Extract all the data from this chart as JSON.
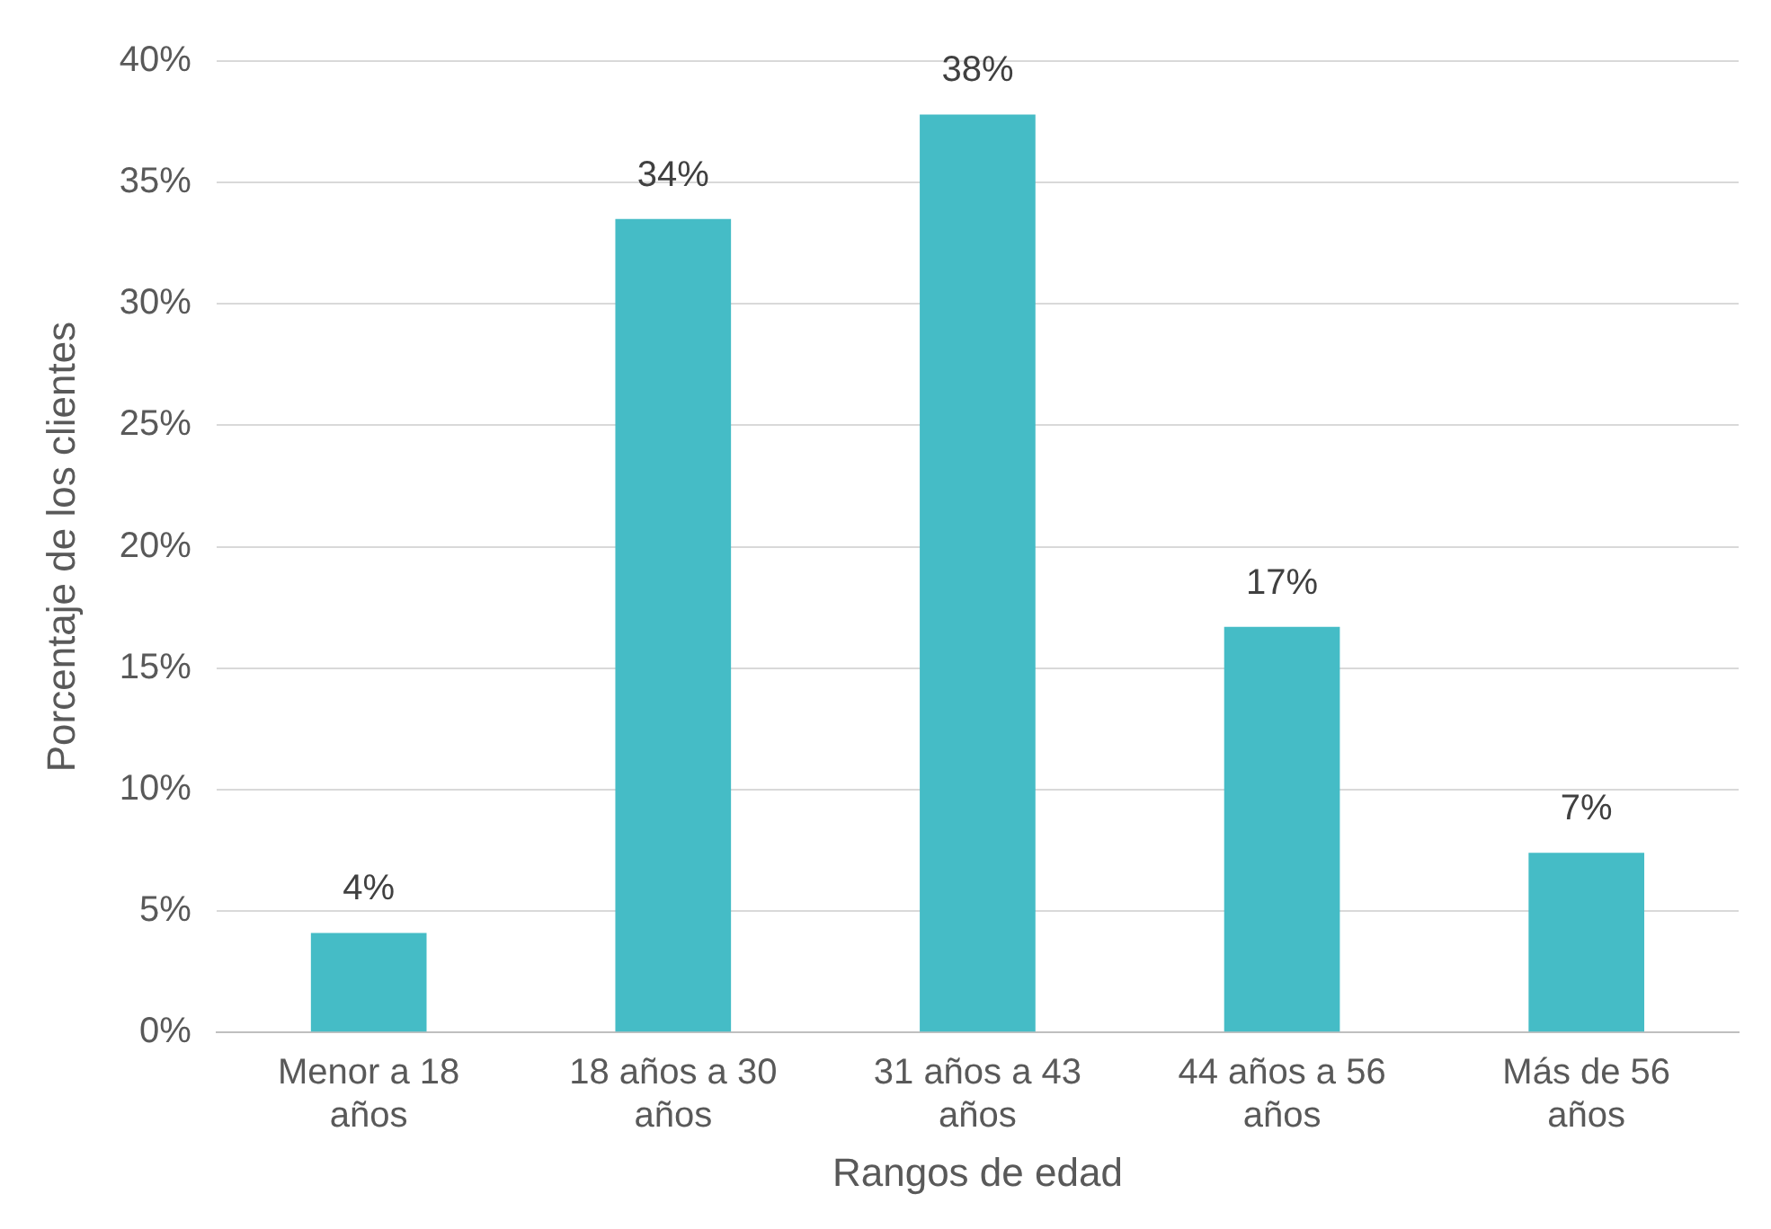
{
  "chart_data": {
    "type": "bar",
    "xlabel": "Rangos de edad",
    "ylabel": "Porcentaje de los clientes",
    "categories": [
      "Menor a 18 años",
      "18 años a 30 años",
      "31 años a 43 años",
      "44 años a 56 años",
      "Más de 56 años"
    ],
    "values": [
      4.1,
      33.5,
      37.8,
      16.7,
      7.4
    ],
    "value_labels": [
      "4%",
      "34%",
      "38%",
      "17%",
      "7%"
    ],
    "color": "#45bcc6",
    "ylim": [
      0,
      40
    ],
    "yticks": [
      {
        "value": 0,
        "label": "0%"
      },
      {
        "value": 5,
        "label": "5%"
      },
      {
        "value": 10,
        "label": "10%"
      },
      {
        "value": 15,
        "label": "15%"
      },
      {
        "value": 20,
        "label": "20%"
      },
      {
        "value": 25,
        "label": "25%"
      },
      {
        "value": 30,
        "label": "30%"
      },
      {
        "value": 35,
        "label": "35%"
      },
      {
        "value": 40,
        "label": "40%"
      }
    ],
    "grid": "y",
    "legend": false
  }
}
